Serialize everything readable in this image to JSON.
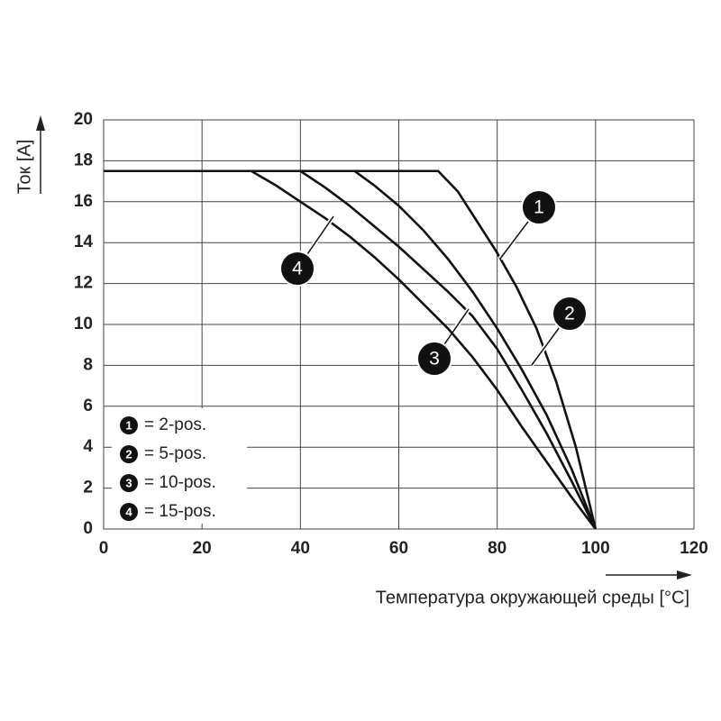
{
  "chart_data": {
    "type": "line",
    "ylabel": "Ток [A]",
    "xlabel": "Температура окружающей среды [°C]",
    "xlim": [
      0,
      120
    ],
    "xticks": [
      0,
      20,
      40,
      60,
      80,
      100,
      120
    ],
    "ylim": [
      0,
      20
    ],
    "yticks": [
      0,
      2,
      4,
      6,
      8,
      10,
      12,
      14,
      16,
      18,
      20
    ],
    "grid": true,
    "series": [
      {
        "marker": "1",
        "name": "= 2-pos.",
        "color": "#111111",
        "x": [
          0,
          68,
          72,
          76,
          80,
          84,
          88,
          92,
          96,
          98,
          100
        ],
        "values": [
          17.5,
          17.5,
          16.5,
          15,
          13.5,
          11.8,
          9.8,
          7.2,
          4,
          2,
          0
        ]
      },
      {
        "marker": "2",
        "name": "= 5-pos.",
        "color": "#111111",
        "x": [
          0,
          51,
          55,
          60,
          65,
          70,
          75,
          80,
          85,
          90,
          95,
          100
        ],
        "values": [
          17.5,
          17.5,
          16.8,
          15.8,
          14.6,
          13.2,
          11.6,
          9.8,
          7.8,
          5.6,
          3,
          0
        ]
      },
      {
        "marker": "3",
        "name": "= 10-pos.",
        "color": "#111111",
        "x": [
          0,
          40,
          45,
          50,
          55,
          60,
          65,
          70,
          75,
          80,
          85,
          90,
          95,
          100
        ],
        "values": [
          17.5,
          17.5,
          16.7,
          15.8,
          14.8,
          13.8,
          12.7,
          11.6,
          10.4,
          8.8,
          6.8,
          4.7,
          2.4,
          0
        ]
      },
      {
        "marker": "4",
        "name": "= 15-pos.",
        "color": "#111111",
        "x": [
          0,
          30,
          35,
          40,
          45,
          50,
          55,
          60,
          65,
          70,
          75,
          80,
          85,
          90,
          95,
          100
        ],
        "values": [
          17.5,
          17.5,
          16.8,
          16,
          15.2,
          14.3,
          13.3,
          12.2,
          11,
          9.8,
          8.4,
          6.8,
          5,
          3.3,
          1.6,
          0
        ]
      }
    ]
  }
}
